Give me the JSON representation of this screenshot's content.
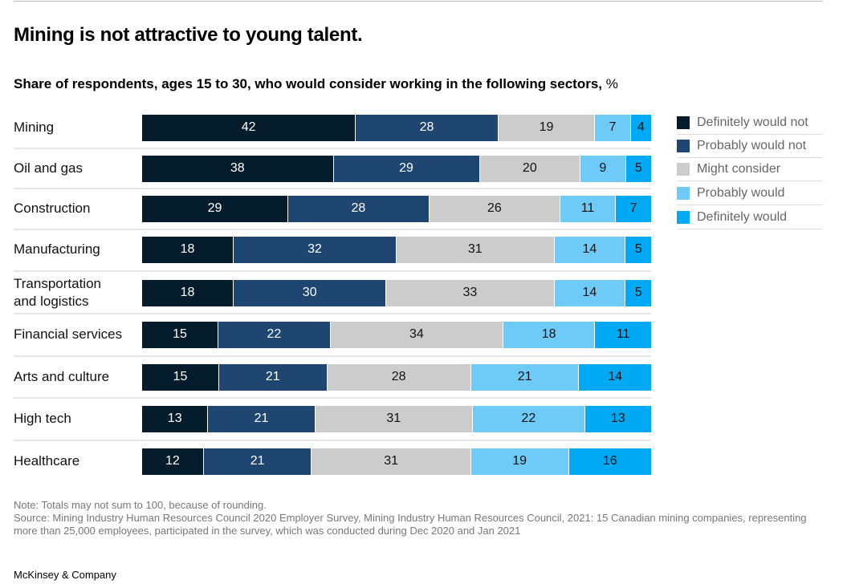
{
  "chart_data": {
    "type": "bar",
    "orientation": "horizontal-stacked",
    "title": "Mining is not attractive to young talent.",
    "subtitle": "Share of respondents, ages 15 to 30, who would consider working in the following sectors,",
    "unit": "%",
    "legend_position": "right",
    "categories": [
      "Mining",
      "Oil and gas",
      "Construction",
      "Manufacturing",
      "Transportation and logistics",
      "Financial services",
      "Arts and culture",
      "High tech",
      "Healthcare"
    ],
    "series": [
      {
        "name": "Definitely would not",
        "color": "#051c2c",
        "values": [
          42,
          38,
          29,
          18,
          18,
          15,
          15,
          13,
          12
        ]
      },
      {
        "name": "Probably would not",
        "color": "#1f4670",
        "values": [
          28,
          29,
          28,
          32,
          30,
          22,
          21,
          21,
          21
        ]
      },
      {
        "name": "Might consider",
        "color": "#cccccc",
        "values": [
          19,
          20,
          26,
          31,
          33,
          34,
          28,
          31,
          31
        ]
      },
      {
        "name": "Probably would",
        "color": "#6ecbf7",
        "values": [
          7,
          9,
          11,
          14,
          14,
          18,
          21,
          22,
          19
        ]
      },
      {
        "name": "Definitely would",
        "color": "#00a9f4",
        "values": [
          4,
          5,
          7,
          5,
          5,
          11,
          14,
          13,
          16
        ]
      }
    ]
  },
  "footer": {
    "note": "Note: Totals may not sum to 100, because of rounding.",
    "source": "Source: Mining Industry Human Resources Council 2020 Employer Survey, Mining Industry Human Resources Council, 2021: 15 Canadian mining companies, representing more than 25,000 employees, participated in the survey, which was conducted during Dec 2020 and Jan 2021",
    "logo": "McKinsey & Company"
  }
}
